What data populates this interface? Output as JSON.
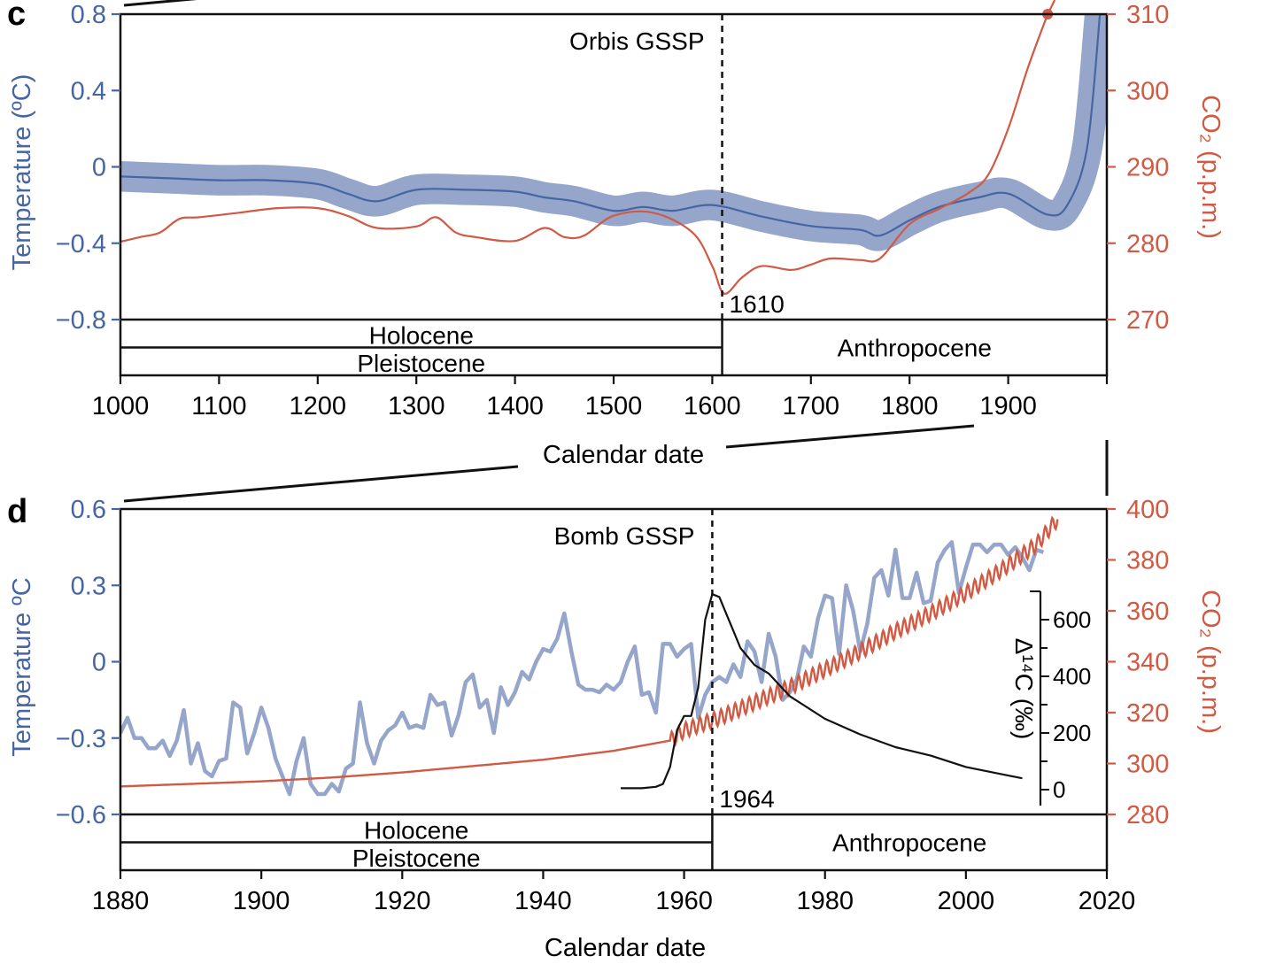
{
  "colors": {
    "temperature": "#4565a3",
    "temperature_light": "#96a6cb",
    "co2": "#d05a43",
    "delta14c": "#111111",
    "frame": "#111111"
  },
  "chart_data": [
    {
      "panel": "c",
      "type": "line",
      "title": "",
      "xlabel": "Calendar date",
      "xlim": [
        1000,
        2000
      ],
      "xticks": [
        1000,
        1100,
        1200,
        1300,
        1400,
        1500,
        1600,
        1700,
        1800,
        1900
      ],
      "ylabel_left": "Temperature (ºC)",
      "ylim_left": [
        -0.8,
        0.8
      ],
      "yticks_left": [
        "0.8",
        "0.4",
        "0",
        "−0.4",
        "−0.8"
      ],
      "ylabel_right": "CO₂ (p.p.m.)",
      "ylim_right": [
        270,
        310
      ],
      "yticks_right": [
        "310",
        "300",
        "290",
        "280",
        "270"
      ],
      "annotations": {
        "gssp_label": "Orbis GSSP",
        "gssp_year": 1610,
        "gssp_year_label": "1610"
      },
      "epochs": {
        "holocene": "Holocene",
        "pleistocene": "Pleistocene",
        "anthropocene": "Anthropocene"
      },
      "series": [
        {
          "name": "Temperature (ºC)",
          "axis": "left",
          "style": "line with uncertainty band",
          "x": [
            1000,
            1050,
            1100,
            1150,
            1200,
            1230,
            1260,
            1300,
            1350,
            1400,
            1430,
            1460,
            1500,
            1530,
            1560,
            1600,
            1650,
            1700,
            1750,
            1770,
            1800,
            1830,
            1870,
            1900,
            1940,
            1960,
            1980,
            1993
          ],
          "y": [
            -0.05,
            -0.06,
            -0.07,
            -0.07,
            -0.09,
            -0.14,
            -0.18,
            -0.12,
            -0.12,
            -0.13,
            -0.16,
            -0.18,
            -0.23,
            -0.21,
            -0.23,
            -0.2,
            -0.26,
            -0.31,
            -0.33,
            -0.36,
            -0.28,
            -0.21,
            -0.16,
            -0.14,
            -0.25,
            -0.2,
            0.1,
            0.8
          ],
          "band_halfwidth": 0.08
        },
        {
          "name": "CO₂ (p.p.m.)",
          "axis": "right",
          "x": [
            1000,
            1020,
            1040,
            1060,
            1080,
            1120,
            1160,
            1200,
            1230,
            1260,
            1300,
            1320,
            1340,
            1360,
            1400,
            1430,
            1450,
            1470,
            1500,
            1540,
            1580,
            1600,
            1612,
            1630,
            1650,
            1680,
            1700,
            1720,
            1750,
            1770,
            1800,
            1830,
            1860,
            1880,
            1900,
            1920,
            1940
          ],
          "y": [
            280.2,
            280.8,
            281.4,
            283.2,
            283.4,
            284.0,
            284.6,
            284.6,
            283.6,
            282.0,
            282.2,
            283.4,
            281.4,
            280.8,
            280.3,
            282.0,
            280.8,
            281.0,
            283.6,
            284.0,
            281.4,
            277.0,
            273.4,
            275.5,
            277.0,
            276.5,
            277.2,
            278.0,
            277.8,
            278.0,
            282.5,
            284.5,
            286.6,
            289.0,
            295.0,
            303.0,
            310.0
          ]
        }
      ]
    },
    {
      "panel": "d",
      "type": "line",
      "title": "",
      "xlabel": "Calendar date",
      "xlim": [
        1880,
        2020
      ],
      "xticks": [
        1880,
        1900,
        1920,
        1940,
        1960,
        1980,
        2000,
        2020
      ],
      "ylabel_left": "Temperature ºC",
      "ylim_left": [
        -0.6,
        0.6
      ],
      "yticks_left": [
        "0.6",
        "0.3",
        "0",
        "−0.3",
        "−0.6"
      ],
      "ylabel_right": "CO₂ (p.p.m.)",
      "ylim_right": [
        280,
        400
      ],
      "yticks_right": [
        "400",
        "380",
        "360",
        "340",
        "320",
        "300",
        "280"
      ],
      "inset_axis": {
        "label": "Δ¹⁴C (‰)",
        "ticks": [
          "600",
          "400",
          "200",
          "0"
        ],
        "range": [
          0,
          700
        ]
      },
      "annotations": {
        "gssp_label": "Bomb GSSP",
        "gssp_year": 1964,
        "gssp_year_label": "1964"
      },
      "epochs": {
        "holocene": "Holocene",
        "pleistocene": "Pleistocene",
        "anthropocene": "Anthropocene"
      },
      "series": [
        {
          "name": "Temperature ºC",
          "axis": "left",
          "x": [
            1880,
            1881,
            1882,
            1883,
            1884,
            1885,
            1886,
            1887,
            1888,
            1889,
            1890,
            1891,
            1892,
            1893,
            1894,
            1895,
            1896,
            1897,
            1898,
            1899,
            1900,
            1901,
            1902,
            1903,
            1904,
            1905,
            1906,
            1907,
            1908,
            1909,
            1910,
            1911,
            1912,
            1913,
            1914,
            1915,
            1916,
            1917,
            1918,
            1919,
            1920,
            1921,
            1922,
            1923,
            1924,
            1925,
            1926,
            1927,
            1928,
            1929,
            1930,
            1931,
            1932,
            1933,
            1934,
            1935,
            1936,
            1937,
            1938,
            1939,
            1940,
            1941,
            1942,
            1943,
            1944,
            1945,
            1946,
            1947,
            1948,
            1949,
            1950,
            1951,
            1952,
            1953,
            1954,
            1955,
            1956,
            1957,
            1958,
            1959,
            1960,
            1961,
            1962,
            1963,
            1964,
            1965,
            1966,
            1967,
            1968,
            1969,
            1970,
            1971,
            1972,
            1973,
            1974,
            1975,
            1976,
            1977,
            1978,
            1979,
            1980,
            1981,
            1982,
            1983,
            1984,
            1985,
            1986,
            1987,
            1988,
            1989,
            1990,
            1991,
            1992,
            1993,
            1994,
            1995,
            1996,
            1997,
            1998,
            1999,
            2000,
            2001,
            2002,
            2003,
            2004,
            2005,
            2006,
            2007,
            2008,
            2009,
            2010,
            2011
          ],
          "y": [
            -0.28,
            -0.22,
            -0.3,
            -0.3,
            -0.34,
            -0.34,
            -0.31,
            -0.37,
            -0.31,
            -0.19,
            -0.4,
            -0.32,
            -0.43,
            -0.45,
            -0.39,
            -0.38,
            -0.16,
            -0.18,
            -0.36,
            -0.28,
            -0.18,
            -0.26,
            -0.38,
            -0.45,
            -0.52,
            -0.39,
            -0.3,
            -0.48,
            -0.52,
            -0.52,
            -0.48,
            -0.51,
            -0.42,
            -0.4,
            -0.16,
            -0.32,
            -0.4,
            -0.31,
            -0.27,
            -0.25,
            -0.2,
            -0.26,
            -0.25,
            -0.26,
            -0.13,
            -0.17,
            -0.16,
            -0.29,
            -0.21,
            -0.08,
            -0.05,
            -0.18,
            -0.15,
            -0.28,
            -0.1,
            -0.17,
            -0.12,
            -0.04,
            -0.07,
            0.0,
            0.05,
            0.04,
            0.09,
            0.19,
            0.04,
            -0.09,
            -0.11,
            -0.11,
            -0.12,
            -0.09,
            -0.11,
            -0.08,
            0.0,
            0.06,
            -0.13,
            -0.12,
            -0.2,
            0.07,
            0.07,
            0.02,
            0.05,
            0.07,
            -0.22,
            -0.13,
            -0.08,
            -0.06,
            -0.08,
            -0.01,
            -0.06,
            0.08,
            0.04,
            -0.08,
            0.11,
            0.02,
            -0.15,
            -0.12,
            -0.07,
            0.06,
            0.02,
            0.17,
            0.26,
            0.25,
            0.03,
            0.3,
            0.2,
            0.04,
            0.15,
            0.33,
            0.36,
            0.26,
            0.44,
            0.25,
            0.25,
            0.35,
            0.23,
            0.24,
            0.39,
            0.44,
            0.47,
            0.27,
            0.37,
            0.46,
            0.46,
            0.43,
            0.46,
            0.46,
            0.42,
            0.45,
            0.41,
            0.36,
            0.44,
            0.43
          ]
        },
        {
          "name": "CO₂ (p.p.m.)",
          "axis": "right",
          "x": [
            1880,
            1890,
            1900,
            1910,
            1920,
            1930,
            1940,
            1950,
            1958,
            1960,
            1965,
            1970,
            1975,
            1980,
            1985,
            1990,
            1995,
            2000,
            2005,
            2010,
            2013
          ],
          "y": [
            291,
            292,
            293,
            294.5,
            296.5,
            299,
            301.5,
            305,
            309,
            313,
            318,
            324,
            330,
            337,
            344,
            352,
            359,
            367,
            376,
            386,
            396
          ],
          "seasonal_amplitude_from": 1958
        },
        {
          "name": "Δ¹⁴C (‰)",
          "axis": "inset",
          "x": [
            1951,
            1954,
            1956,
            1957,
            1958,
            1959,
            1960,
            1961,
            1962,
            1963,
            1964,
            1965,
            1966,
            1967,
            1968,
            1970,
            1972,
            1975,
            1980,
            1985,
            1990,
            1995,
            2000,
            2005,
            2008
          ],
          "y": [
            5,
            5,
            10,
            20,
            80,
            210,
            260,
            260,
            360,
            600,
            690,
            680,
            620,
            560,
            500,
            440,
            410,
            330,
            250,
            195,
            150,
            120,
            80,
            55,
            40
          ]
        }
      ]
    }
  ]
}
